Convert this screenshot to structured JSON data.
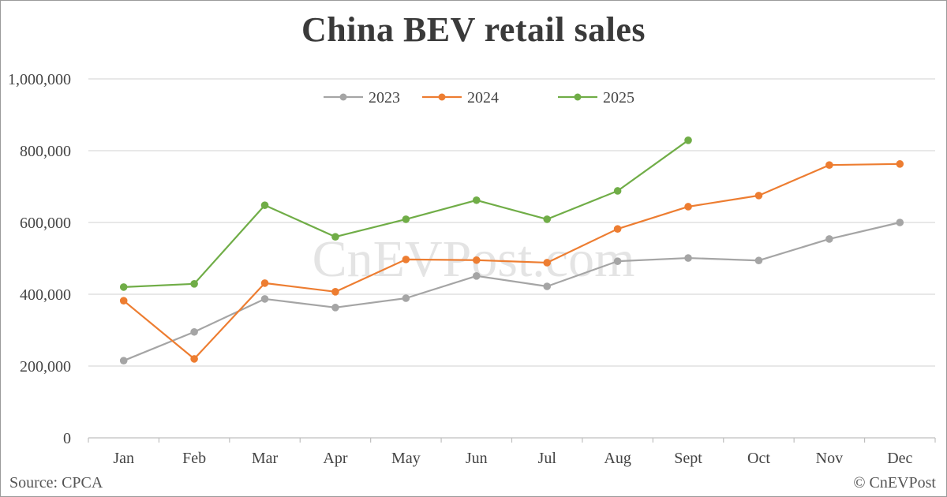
{
  "title": "China BEV retail sales",
  "footer": {
    "source": "Source: CPCA",
    "copyright": "© CnEVPost"
  },
  "watermark": "CnEVPost.com",
  "colors": {
    "2023": "#a5a5a5",
    "2024": "#ed7d31",
    "2025": "#70ad47",
    "grid": "#d9d9d9",
    "axis": "#d9d9d9"
  },
  "chart_data": {
    "type": "line",
    "title": "China BEV retail sales",
    "xlabel": "",
    "ylabel": "",
    "categories": [
      "Jan",
      "Feb",
      "Mar",
      "Apr",
      "May",
      "Jun",
      "Jul",
      "Aug",
      "Sept",
      "Oct",
      "Nov",
      "Dec"
    ],
    "series": [
      {
        "name": "2023",
        "color": "#a5a5a5",
        "values": [
          215000,
          295000,
          387000,
          363000,
          389000,
          451000,
          422000,
          492000,
          501000,
          494000,
          554000,
          600000
        ]
      },
      {
        "name": "2024",
        "color": "#ed7d31",
        "values": [
          382000,
          220000,
          431000,
          407000,
          497000,
          495000,
          488000,
          582000,
          644000,
          675000,
          760000,
          763000
        ]
      },
      {
        "name": "2025",
        "color": "#70ad47",
        "values": [
          420000,
          429000,
          648000,
          560000,
          609000,
          662000,
          609000,
          688000,
          829000,
          null,
          null,
          null
        ]
      }
    ],
    "ylim": [
      0,
      1000000
    ],
    "yticks": [
      0,
      200000,
      400000,
      600000,
      800000,
      1000000
    ],
    "ytick_labels": [
      "0",
      "200,000",
      "400,000",
      "600,000",
      "800,000",
      "1,000,000"
    ],
    "grid": true,
    "legend_position": "top-center",
    "legend": [
      "2023",
      "2024",
      "2025"
    ],
    "annotations": [
      "Source: CPCA",
      "© CnEVPost"
    ]
  }
}
